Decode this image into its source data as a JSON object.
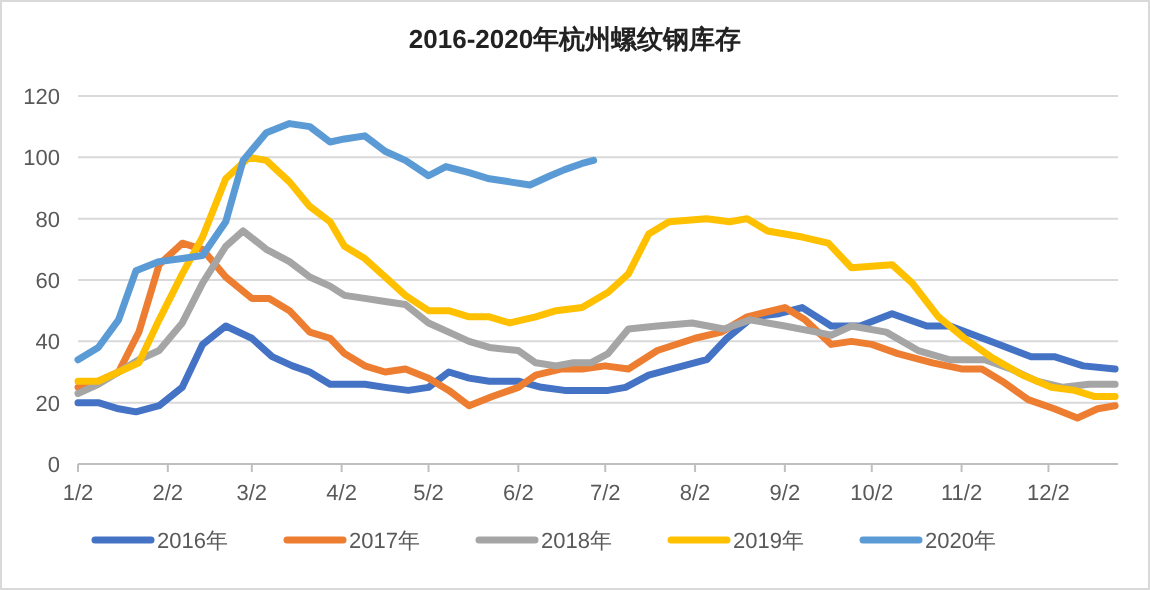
{
  "chart_data": {
    "type": "line",
    "title": "2016-2020年杭州螺纹钢库存",
    "xlim": [
      "--01-02",
      "--12-26"
    ],
    "ylim": [
      0,
      120
    ],
    "yticks": [
      0,
      20,
      40,
      60,
      80,
      100,
      120
    ],
    "xticks": [
      {
        "value": "--01-02",
        "label": "1/2"
      },
      {
        "value": "--02-02",
        "label": "2/2"
      },
      {
        "value": "--03-02",
        "label": "3/2"
      },
      {
        "value": "--04-02",
        "label": "4/2"
      },
      {
        "value": "--05-02",
        "label": "5/2"
      },
      {
        "value": "--06-02",
        "label": "6/2"
      },
      {
        "value": "--07-02",
        "label": "7/2"
      },
      {
        "value": "--08-02",
        "label": "8/2"
      },
      {
        "value": "--09-02",
        "label": "9/2"
      },
      {
        "value": "--10-02",
        "label": "10/2"
      },
      {
        "value": "--11-02",
        "label": "11/2"
      },
      {
        "value": "--12-02",
        "label": "12/2"
      }
    ],
    "grid": "y",
    "legend": "bottom",
    "line_style": "solid",
    "series": [
      {
        "name": "2016年",
        "color": "#4472c4",
        "x": [
          "--01-02",
          "--01-09",
          "--01-16",
          "--01-22",
          "--01-30",
          "--02-07",
          "--02-14",
          "--02-22",
          "--03-02",
          "--03-09",
          "--03-16",
          "--03-22",
          "--03-29",
          "--04-03",
          "--04-10",
          "--04-17",
          "--04-25",
          "--05-02",
          "--05-09",
          "--05-16",
          "--05-23",
          "--06-02",
          "--06-10",
          "--06-18",
          "--06-24",
          "--07-03",
          "--07-09",
          "--07-17",
          "--07-25",
          "--08-06",
          "--08-13",
          "--08-22",
          "--08-31",
          "--09-08",
          "--09-18",
          "--09-28",
          "--10-09",
          "--10-21",
          "--10-29",
          "--11-12",
          "--11-26",
          "--12-04",
          "--12-14",
          "--12-25"
        ],
        "values": [
          20,
          20,
          18,
          17,
          19,
          25,
          39,
          45,
          41,
          35,
          32,
          30,
          26,
          26,
          26,
          25,
          24,
          25,
          30,
          28,
          27,
          27,
          25,
          24,
          24,
          24,
          25,
          29,
          31,
          34,
          41,
          48,
          49,
          51,
          45,
          45,
          49,
          45,
          45,
          40,
          35,
          35,
          32,
          31
        ]
      },
      {
        "name": "2017年",
        "color": "#ed7d31",
        "x": [
          "--01-02",
          "--01-09",
          "--01-16",
          "--01-23",
          "--01-30",
          "--02-07",
          "--02-14",
          "--02-22",
          "--03-02",
          "--03-08",
          "--03-15",
          "--03-22",
          "--03-29",
          "--04-03",
          "--04-10",
          "--04-17",
          "--04-24",
          "--05-02",
          "--05-09",
          "--05-16",
          "--05-24",
          "--06-02",
          "--06-08",
          "--06-17",
          "--06-24",
          "--07-02",
          "--07-10",
          "--07-20",
          "--08-02",
          "--08-11",
          "--08-20",
          "--09-02",
          "--09-09",
          "--09-18",
          "--09-25",
          "--10-02",
          "--10-11",
          "--10-23",
          "--11-02",
          "--11-09",
          "--11-16",
          "--11-25",
          "--12-04",
          "--12-12",
          "--12-19",
          "--12-25"
        ],
        "values": [
          25,
          27,
          30,
          43,
          65,
          72,
          70,
          61,
          54,
          54,
          50,
          43,
          41,
          36,
          32,
          30,
          31,
          28,
          24,
          19,
          22,
          25,
          29,
          31,
          31,
          32,
          31,
          37,
          41,
          43,
          48,
          51,
          47,
          39,
          40,
          39,
          36,
          33,
          31,
          31,
          27,
          21,
          18,
          15,
          18,
          19
        ]
      },
      {
        "name": "2018年",
        "color": "#a5a5a5",
        "x": [
          "--01-02",
          "--01-09",
          "--01-16",
          "--01-23",
          "--01-30",
          "--02-07",
          "--02-14",
          "--02-22",
          "--02-28",
          "--03-07",
          "--03-15",
          "--03-22",
          "--03-29",
          "--04-03",
          "--04-10",
          "--04-17",
          "--04-24",
          "--05-02",
          "--05-09",
          "--05-16",
          "--05-23",
          "--06-02",
          "--06-08",
          "--06-15",
          "--06-21",
          "--06-27",
          "--07-03",
          "--07-10",
          "--07-20",
          "--08-01",
          "--08-12",
          "--08-21",
          "--09-02",
          "--09-13",
          "--09-18",
          "--09-25",
          "--10-07",
          "--10-18",
          "--10-29",
          "--11-10",
          "--11-19",
          "--11-28",
          "--12-07",
          "--12-16",
          "--12-25"
        ],
        "values": [
          23,
          26,
          30,
          34,
          37,
          46,
          59,
          71,
          76,
          70,
          66,
          61,
          58,
          55,
          54,
          53,
          52,
          46,
          43,
          40,
          38,
          37,
          33,
          32,
          33,
          33,
          36,
          44,
          45,
          46,
          44,
          47,
          45,
          43,
          42,
          45,
          43,
          37,
          34,
          34,
          31,
          27,
          25,
          26,
          26
        ]
      },
      {
        "name": "2019年",
        "color": "#ffc000",
        "x": [
          "--01-02",
          "--01-09",
          "--01-16",
          "--01-23",
          "--01-30",
          "--02-07",
          "--02-14",
          "--02-22",
          "--03-01",
          "--03-07",
          "--03-15",
          "--03-22",
          "--03-29",
          "--04-03",
          "--04-10",
          "--04-17",
          "--04-24",
          "--05-02",
          "--05-09",
          "--05-16",
          "--05-23",
          "--05-30",
          "--06-08",
          "--06-15",
          "--06-24",
          "--07-03",
          "--07-10",
          "--07-17",
          "--07-24",
          "--08-06",
          "--08-14",
          "--08-20",
          "--08-27",
          "--09-08",
          "--09-17",
          "--09-25",
          "--10-09",
          "--10-16",
          "--10-25",
          "--11-03",
          "--11-12",
          "--11-23",
          "--12-03",
          "--12-11",
          "--12-18",
          "--12-25"
        ],
        "values": [
          27,
          27,
          30,
          33,
          47,
          62,
          74,
          93,
          100,
          99,
          92,
          84,
          79,
          71,
          67,
          61,
          55,
          50,
          50,
          48,
          48,
          46,
          48,
          50,
          51,
          56,
          62,
          75,
          79,
          80,
          79,
          80,
          76,
          74,
          72,
          64,
          65,
          59,
          48,
          41,
          35,
          29,
          25,
          24,
          22,
          22
        ]
      },
      {
        "name": "2020年",
        "color": "#5b9bd5",
        "x": [
          "--01-02",
          "--01-09",
          "--01-16",
          "--01-22",
          "--01-30",
          "--02-07",
          "--02-14",
          "--02-22",
          "--02-28",
          "--03-07",
          "--03-15",
          "--03-22",
          "--03-29",
          "--04-03",
          "--04-10",
          "--04-17",
          "--04-24",
          "--05-02",
          "--05-08",
          "--05-16",
          "--05-23",
          "--05-30",
          "--06-06",
          "--06-13",
          "--06-18",
          "--06-24",
          "--06-28"
        ],
        "values": [
          34,
          38,
          47,
          63,
          66,
          67,
          68,
          79,
          99,
          108,
          111,
          110,
          105,
          106,
          107,
          102,
          99,
          94,
          97,
          95,
          93,
          92,
          91,
          94,
          96,
          98,
          99
        ]
      }
    ]
  }
}
